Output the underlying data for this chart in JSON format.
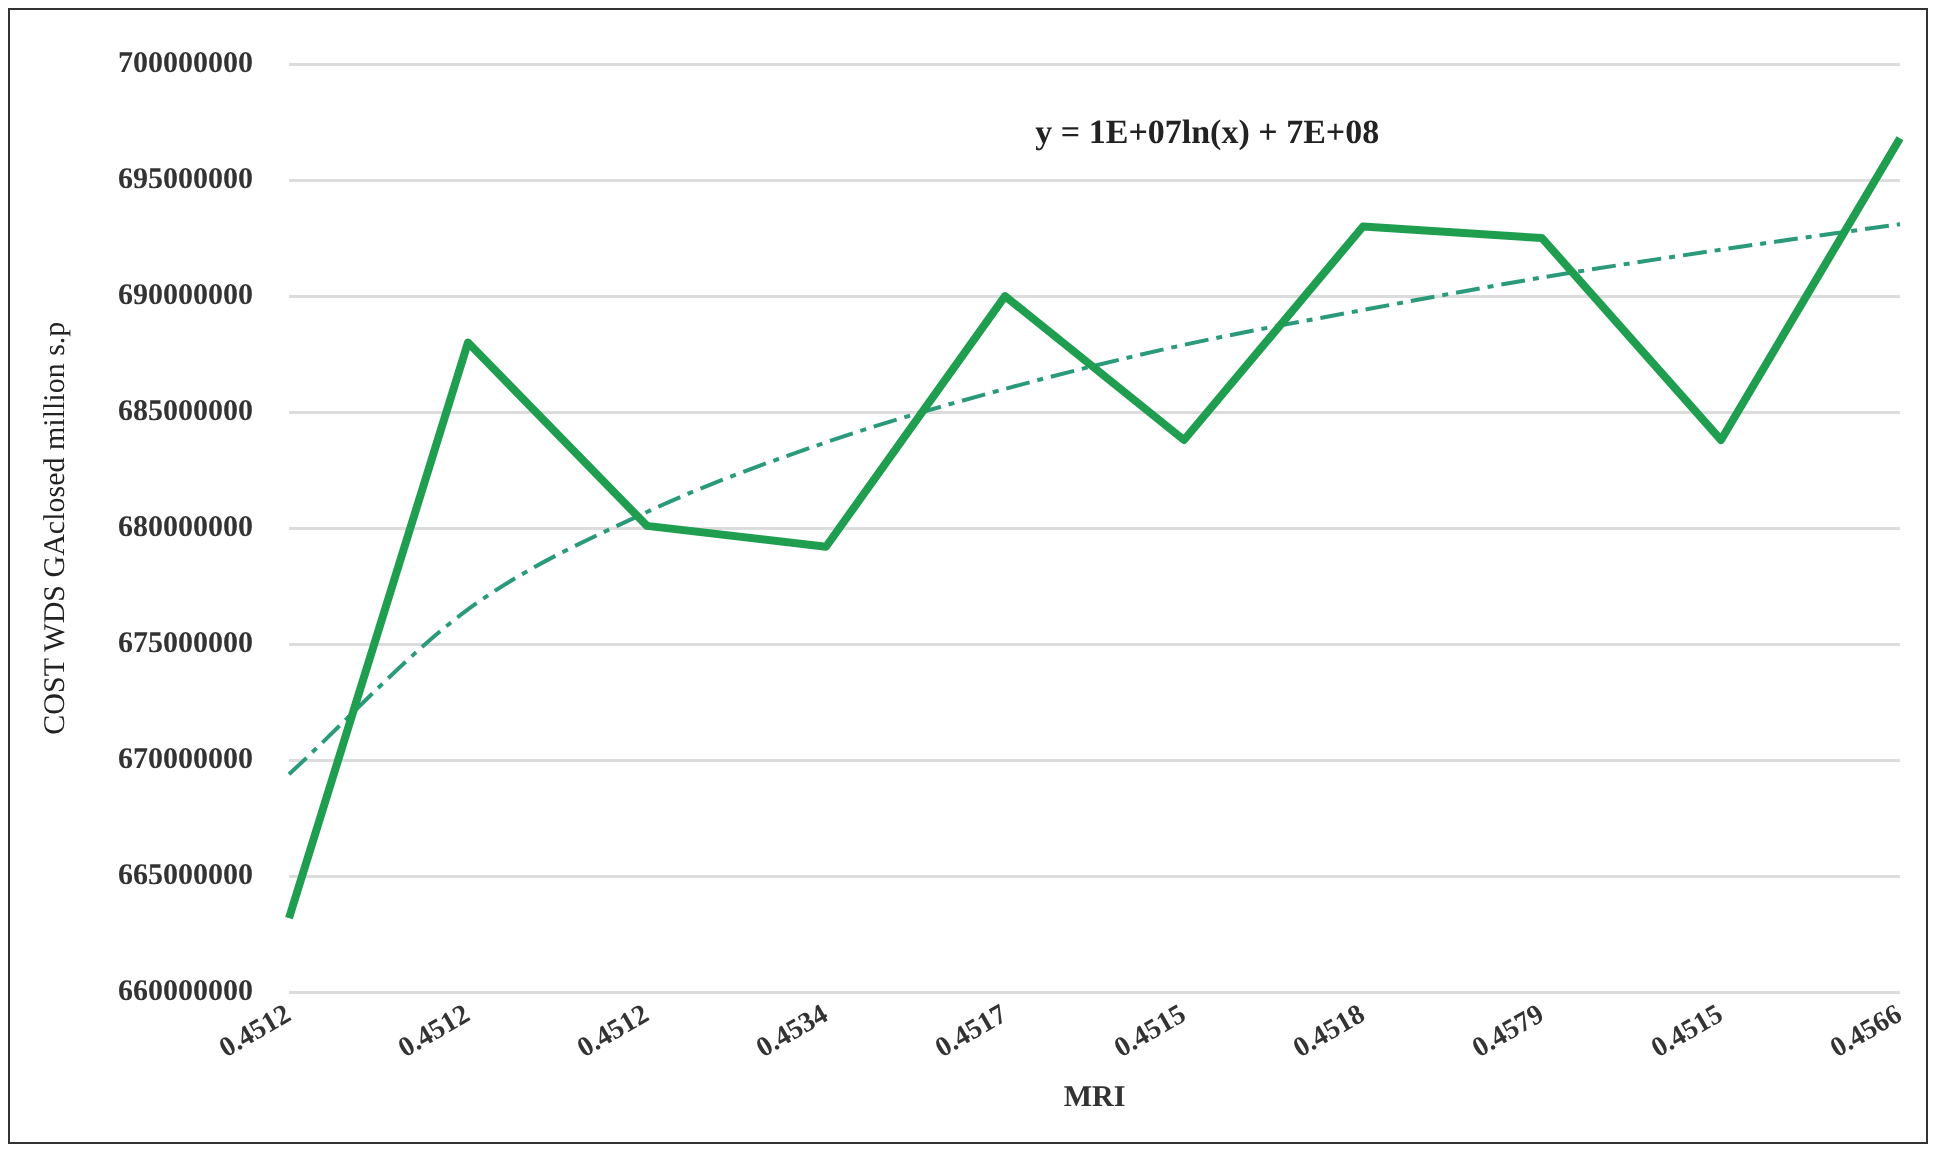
{
  "chart_data": {
    "type": "line",
    "categories": [
      "0.4512",
      "0.4512",
      "0.4512",
      "0.4534",
      "0.4517",
      "0.4515",
      "0.4518",
      "0.4579",
      "0.4515",
      "0.4566"
    ],
    "xlabel": "MRI",
    "ylabel": "COST WDS GAclosed million s.p",
    "ylim": [
      660000000,
      700000000
    ],
    "yticks": [
      660000000,
      665000000,
      670000000,
      675000000,
      680000000,
      685000000,
      690000000,
      695000000,
      700000000
    ],
    "grid": "y",
    "legend": false,
    "marker": "none",
    "annotations": [
      "y = 1E+07ln(x) + 7E+08"
    ],
    "series": [
      {
        "values": [
          663200000,
          688000000,
          680100000,
          679200000,
          690000000,
          683800000,
          693000000,
          692500000,
          683800000,
          696800000
        ],
        "color": "#1f9e50",
        "line_style": "solid"
      },
      {
        "type": "line",
        "values": [
          669400000,
          676500000,
          680700000,
          683700000,
          686000000,
          687900000,
          689400000,
          690800000,
          692000000,
          693100000
        ],
        "color": "#2a9a7a",
        "line_style": "dashed"
      }
    ]
  }
}
